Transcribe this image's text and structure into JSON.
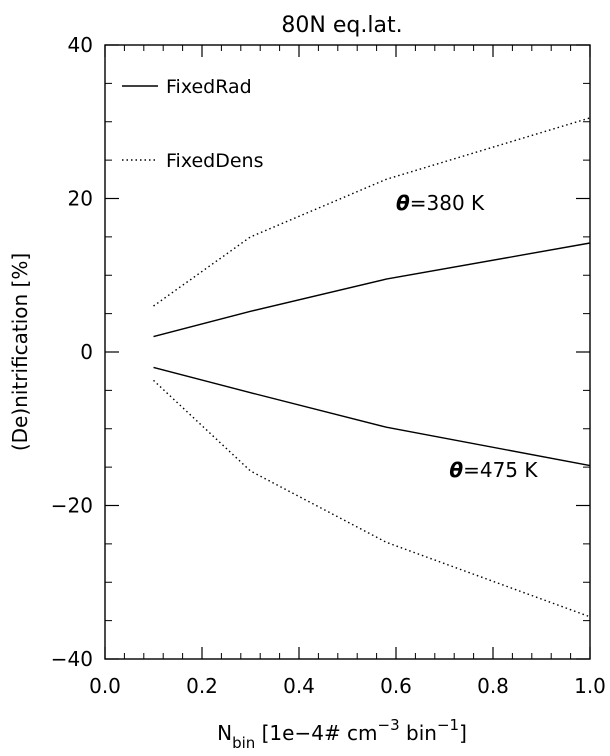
{
  "chart_data": {
    "type": "line",
    "title": "80N eq.lat.",
    "xlabel": {
      "main": "N",
      "sub": "bin",
      "unit_open": " [1e−4# cm",
      "exp1": "−3",
      "unit_mid": " bin",
      "exp2": "−1",
      "unit_close": "]"
    },
    "ylabel": "(De)nitrification [%]",
    "xlim": [
      0.0,
      1.0
    ],
    "ylim": [
      -40,
      40
    ],
    "x_ticks": [
      "0.0",
      "0.2",
      "0.4",
      "0.6",
      "0.8",
      "1.0"
    ],
    "y_ticks": [
      "40",
      "20",
      "0",
      "−20",
      "−40"
    ],
    "y_tick_values": [
      40,
      20,
      0,
      -20,
      -40
    ],
    "x_tick_values": [
      0.0,
      0.2,
      0.4,
      0.6,
      0.8,
      1.0
    ],
    "legend_position": "top-left",
    "legend": [
      {
        "label": "FixedRad",
        "style": "solid"
      },
      {
        "label": "FixedDens",
        "style": "dotted"
      }
    ],
    "annotations": [
      {
        "symbol": "θ",
        "text": "=380 K",
        "x": 0.6,
        "y": 18.5
      },
      {
        "symbol": "θ",
        "text": "=475 K",
        "x": 0.71,
        "y": -16.3
      }
    ],
    "series": [
      {
        "line": "FixedRad",
        "level": "380 K",
        "dash": "solid",
        "x": [
          0.1,
          0.3,
          0.58,
          1.0
        ],
        "y": [
          2.0,
          5.3,
          9.5,
          14.2
        ]
      },
      {
        "line": "FixedDens",
        "level": "380 K",
        "dash": "dotted",
        "x": [
          0.1,
          0.3,
          0.58,
          1.0
        ],
        "y": [
          6.0,
          15.0,
          22.5,
          30.5
        ]
      },
      {
        "line": "FixedRad",
        "level": "475 K",
        "dash": "solid",
        "x": [
          0.1,
          0.3,
          0.58,
          1.0
        ],
        "y": [
          -2.0,
          -5.3,
          -9.8,
          -14.8
        ]
      },
      {
        "line": "FixedDens",
        "level": "475 K",
        "dash": "dotted",
        "x": [
          0.1,
          0.3,
          0.58,
          1.0
        ],
        "y": [
          -3.7,
          -15.5,
          -24.8,
          -34.5
        ]
      }
    ]
  }
}
